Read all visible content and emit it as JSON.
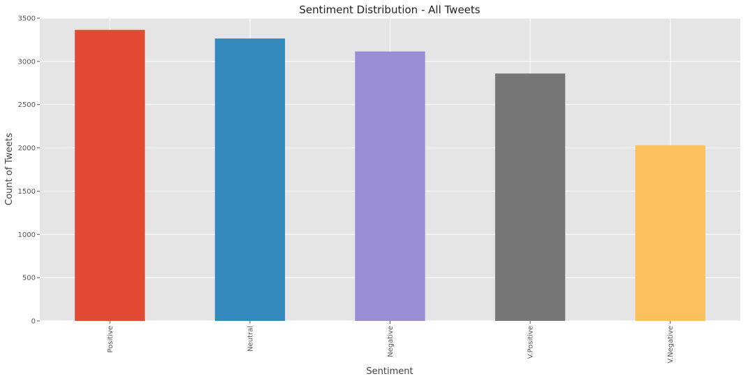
{
  "chart_data": {
    "type": "bar",
    "title": "Sentiment Distribution - All Tweets",
    "xlabel": "Sentiment",
    "ylabel": "Count of Tweets",
    "categories": [
      "Positive",
      "Neutral",
      "Negative",
      "V.Positive",
      "V.Negative"
    ],
    "values": [
      3365,
      3265,
      3115,
      2860,
      2030
    ],
    "colors": [
      "#E24A33",
      "#348ABD",
      "#988ED5",
      "#777777",
      "#FBC15E"
    ],
    "ylim": [
      0,
      3500
    ],
    "yticks": [
      0,
      500,
      1000,
      1500,
      2000,
      2500,
      3000,
      3500
    ],
    "grid": true,
    "plot_background": "#E5E5E5"
  }
}
